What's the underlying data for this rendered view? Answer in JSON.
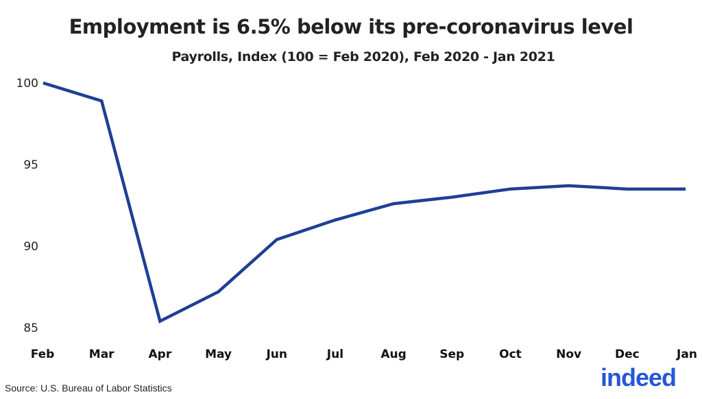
{
  "header": {
    "title": "Employment is 6.5% below its pre-coronavirus level",
    "subtitle": "Payrolls, Index (100 = Feb 2020), Feb 2020 - Jan 2021"
  },
  "footer": {
    "source": "Source: U.S. Bureau of Labor Statistics",
    "logo_text": "indeed"
  },
  "colors": {
    "line": "#1f3f94",
    "logo": "#2557d6"
  },
  "chart_data": {
    "type": "line",
    "title": "Employment is 6.5% below its pre-coronavirus level",
    "subtitle": "Payrolls, Index (100 = Feb 2020), Feb 2020 - Jan 2021",
    "xlabel": "",
    "ylabel": "",
    "categories": [
      "Feb",
      "Mar",
      "Apr",
      "May",
      "Jun",
      "Jul",
      "Aug",
      "Sep",
      "Oct",
      "Nov",
      "Dec",
      "Jan"
    ],
    "series": [
      {
        "name": "Payrolls Index",
        "values": [
          100.0,
          98.9,
          85.4,
          87.2,
          90.4,
          91.6,
          92.6,
          93.0,
          93.5,
          93.7,
          93.5,
          93.5
        ]
      }
    ],
    "yticks": [
      85,
      90,
      95,
      100
    ],
    "ylim": [
      85,
      100
    ],
    "grid": false,
    "legend": "none",
    "annotations": [
      "Source: U.S. Bureau of Labor Statistics"
    ]
  }
}
